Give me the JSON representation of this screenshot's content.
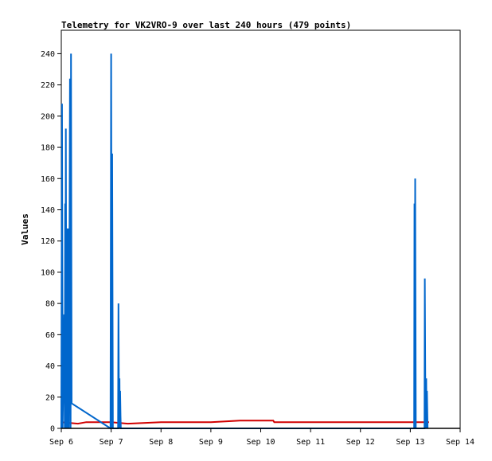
{
  "chart_data": {
    "type": "line",
    "title": "Telemetry for VK2VRO-9 over last 240 hours (479 points)",
    "ylabel": "Values",
    "xlabel": "",
    "ylim": [
      0,
      255
    ],
    "xlim": [
      "2024-09-06T00:00",
      "2024-09-14T00:00"
    ],
    "y_ticks": [
      0,
      20,
      40,
      60,
      80,
      100,
      120,
      140,
      160,
      180,
      200,
      220,
      240
    ],
    "x_ticks": [
      {
        "label": "Sep 6",
        "t": "2024-09-06T00:00"
      },
      {
        "label": "Sep 7",
        "t": "2024-09-07T00:00"
      },
      {
        "label": "Sep 8",
        "t": "2024-09-08T00:00"
      },
      {
        "label": "Sep 9",
        "t": "2024-09-09T00:00"
      },
      {
        "label": "Sep 10",
        "t": "2024-09-10T00:00"
      },
      {
        "label": "Sep 11",
        "t": "2024-09-11T00:00"
      },
      {
        "label": "Sep 12",
        "t": "2024-09-12T00:00"
      },
      {
        "label": "Sep 13",
        "t": "2024-09-13T00:00"
      },
      {
        "label": "Sep 14",
        "t": "2024-09-14T00:00"
      }
    ],
    "grid": false,
    "legend": "none",
    "series": [
      {
        "color": "#d00000",
        "points": [
          [
            "2024-09-06T00:00",
            4
          ],
          [
            "2024-09-06T08:00",
            3
          ],
          [
            "2024-09-06T12:00",
            4
          ],
          [
            "2024-09-07T00:00",
            4
          ],
          [
            "2024-09-07T08:00",
            3
          ],
          [
            "2024-09-08T00:00",
            4
          ],
          [
            "2024-09-09T00:00",
            4
          ],
          [
            "2024-09-09T14:00",
            5
          ],
          [
            "2024-09-10T06:00",
            5
          ],
          [
            "2024-09-10T06:30",
            4
          ],
          [
            "2024-09-11T00:00",
            4
          ],
          [
            "2024-09-12T00:00",
            4
          ],
          [
            "2024-09-13T00:00",
            4
          ],
          [
            "2024-09-13T09:00",
            4
          ]
        ]
      },
      {
        "color": "#0066cc",
        "points": [
          [
            "2024-09-06T00:00",
            0
          ],
          [
            "2024-09-06T00:20",
            208
          ],
          [
            "2024-09-06T00:40",
            0
          ],
          [
            "2024-09-06T01:20",
            73
          ],
          [
            "2024-09-06T01:40",
            0
          ],
          [
            "2024-09-06T01:50",
            144
          ],
          [
            "2024-09-06T02:00",
            0
          ],
          [
            "2024-09-06T02:10",
            192
          ],
          [
            "2024-09-06T02:30",
            0
          ],
          [
            "2024-09-06T02:40",
            128
          ],
          [
            "2024-09-06T03:10",
            0
          ],
          [
            "2024-09-06T03:20",
            128
          ],
          [
            "2024-09-06T03:40",
            0
          ],
          [
            "2024-09-06T04:10",
            224
          ],
          [
            "2024-09-06T04:30",
            0
          ],
          [
            "2024-09-06T04:40",
            240
          ],
          [
            "2024-09-06T05:00",
            16
          ],
          [
            "2024-09-06T22:30",
            1
          ],
          [
            "2024-09-06T23:40",
            0
          ],
          [
            "2024-09-07T00:00",
            240
          ],
          [
            "2024-09-07T00:20",
            0
          ],
          [
            "2024-09-07T00:30",
            176
          ],
          [
            "2024-09-07T00:50",
            0
          ],
          [
            "2024-09-07T03:20",
            0
          ],
          [
            "2024-09-07T03:30",
            80
          ],
          [
            "2024-09-07T03:50",
            0
          ],
          [
            "2024-09-07T04:00",
            32
          ],
          [
            "2024-09-07T04:10",
            0
          ],
          [
            "2024-09-07T04:20",
            24
          ],
          [
            "2024-09-07T04:30",
            8
          ],
          [
            "2024-09-07T04:40",
            0
          ],
          [
            "2024-09-13T01:50",
            0
          ],
          [
            "2024-09-13T02:00",
            144
          ],
          [
            "2024-09-13T02:10",
            0
          ],
          [
            "2024-09-13T02:20",
            160
          ],
          [
            "2024-09-13T02:40",
            0
          ],
          [
            "2024-09-13T06:50",
            0
          ],
          [
            "2024-09-13T07:00",
            96
          ],
          [
            "2024-09-13T07:20",
            0
          ],
          [
            "2024-09-13T07:40",
            32
          ],
          [
            "2024-09-13T07:50",
            0
          ],
          [
            "2024-09-13T08:00",
            24
          ],
          [
            "2024-09-13T08:20",
            0
          ]
        ]
      }
    ]
  }
}
